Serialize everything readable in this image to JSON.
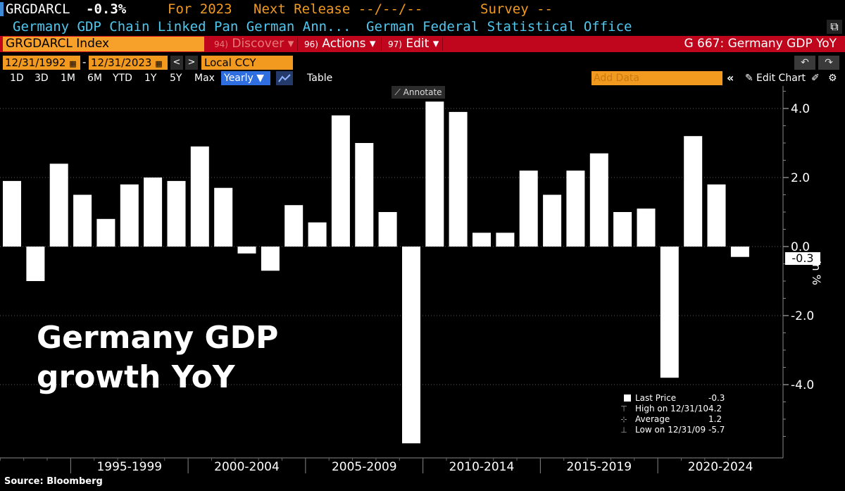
{
  "header": {
    "ticker": "GRGDARCL",
    "change": "-0.3%",
    "period": "For 2023",
    "next_release": "Next Release --/--/--",
    "survey": "Survey --",
    "description": "Germany GDP Chain Linked Pan German Ann...",
    "source_org": "German Federal Statistical Office"
  },
  "menubar": {
    "security": "GRGDARCL Index",
    "discover_num": "94)",
    "discover": "Discover",
    "actions_num": "96)",
    "actions": "Actions",
    "edit_num": "97)",
    "edit": "Edit",
    "graph_title": "G 667: Germany GDP YoY"
  },
  "controls": {
    "start_date": "12/31/1992",
    "end_date": "12/31/2023",
    "dash": "-",
    "currency": "Local CCY",
    "back": "<",
    "forward": ">",
    "undo": "↶",
    "redo": "↷"
  },
  "toolbar": {
    "ranges": [
      "1D",
      "3D",
      "1M",
      "6M",
      "YTD",
      "1Y",
      "5Y",
      "Max"
    ],
    "frequency": "Yearly",
    "table": "Table",
    "add_data": "Add Data",
    "edit_chart": "Edit Chart",
    "collapse": "«",
    "annotate": "Annotate"
  },
  "chart_data": {
    "type": "bar",
    "title": "Germany GDP growth YoY",
    "title_lines": [
      "Germany GDP",
      "growth YoY"
    ],
    "unit_label": "in %",
    "years": [
      1992,
      1993,
      1994,
      1995,
      1996,
      1997,
      1998,
      1999,
      2000,
      2001,
      2002,
      2003,
      2004,
      2005,
      2006,
      2007,
      2008,
      2009,
      2010,
      2011,
      2012,
      2013,
      2014,
      2015,
      2016,
      2017,
      2018,
      2019,
      2020,
      2021,
      2022,
      2023
    ],
    "values": [
      1.9,
      -1.0,
      2.4,
      1.5,
      0.8,
      1.8,
      2.0,
      1.9,
      2.9,
      1.7,
      -0.2,
      -0.7,
      1.2,
      0.7,
      3.8,
      3.0,
      1.0,
      -5.7,
      4.2,
      3.9,
      0.4,
      0.4,
      2.2,
      1.5,
      2.2,
      2.7,
      1.0,
      1.1,
      -3.8,
      3.2,
      1.8,
      -0.3
    ],
    "ylim": [
      -6,
      4.5
    ],
    "yticks": [
      4.0,
      2.0,
      0.0,
      -2.0,
      -4.0
    ],
    "ytick_labels": [
      "4.0",
      "2.0",
      "0.0",
      "-2.0",
      "-4.0"
    ],
    "x_groups": [
      "1995-1999",
      "2000-2004",
      "2005-2009",
      "2010-2014",
      "2015-2019",
      "2020-2024"
    ],
    "last_value_label": "-0.3",
    "legend": [
      {
        "name": "Last Price",
        "value": "-0.3"
      },
      {
        "name": "High on 12/31/10",
        "value": "4.2"
      },
      {
        "name": "Average",
        "value": "1.2"
      },
      {
        "name": "Low on 12/31/09",
        "value": "-5.7"
      }
    ]
  },
  "footer": {
    "source": "Source: Bloomberg"
  },
  "colors": {
    "orange": "#f29a1f",
    "red_bar": "#c0061d",
    "cyan": "#4ec8f0",
    "bars": "#ffffff"
  }
}
